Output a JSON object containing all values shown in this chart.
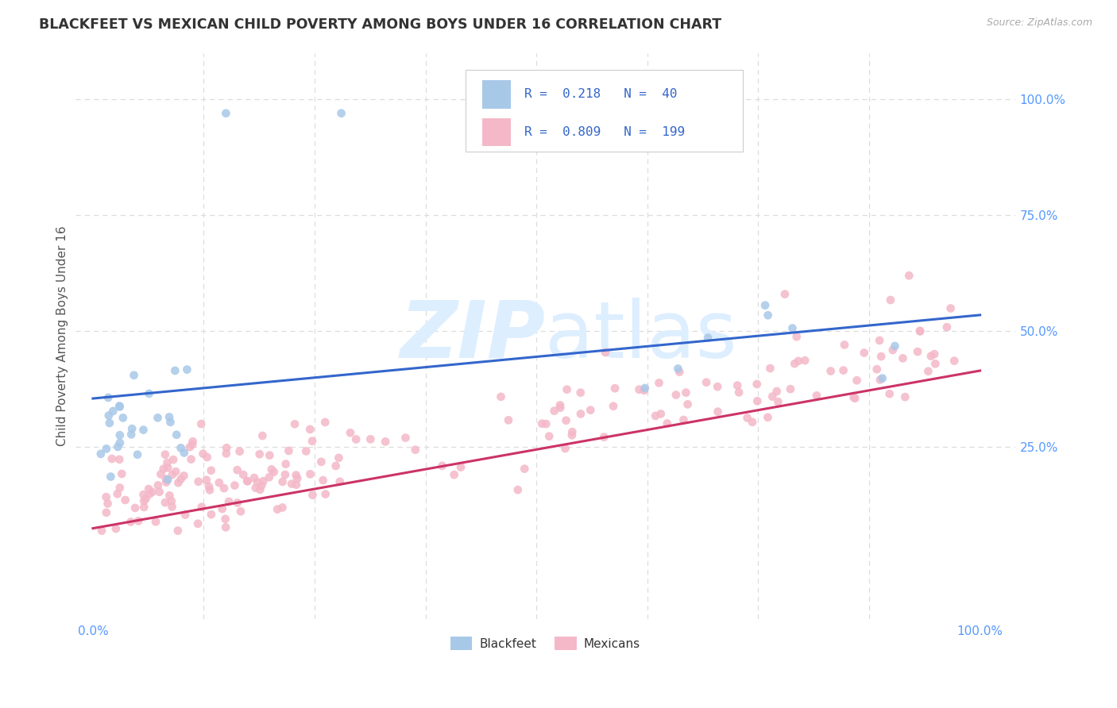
{
  "title": "BLACKFEET VS MEXICAN CHILD POVERTY AMONG BOYS UNDER 16 CORRELATION CHART",
  "source": "Source: ZipAtlas.com",
  "ylabel": "Child Poverty Among Boys Under 16",
  "blackfeet_R": 0.218,
  "blackfeet_N": 40,
  "mexican_R": 0.809,
  "mexican_N": 199,
  "blackfeet_color": "#a8c8e8",
  "mexican_color": "#f4b8c8",
  "blackfeet_line_color": "#3366cc",
  "mexican_line_color": "#cc3366",
  "watermark_color": "#ddeeff",
  "background_color": "#ffffff",
  "grid_color": "#dddddd",
  "tick_color": "#5599ff",
  "title_color": "#333333",
  "source_color": "#aaaaaa",
  "legend_text_color": "#3366cc",
  "bf_line_y0": 0.355,
  "bf_line_y1": 0.535,
  "mx_line_y0": 0.075,
  "mx_line_y1": 0.415,
  "xlim": [
    -0.02,
    1.04
  ],
  "ylim": [
    -0.12,
    1.1
  ]
}
